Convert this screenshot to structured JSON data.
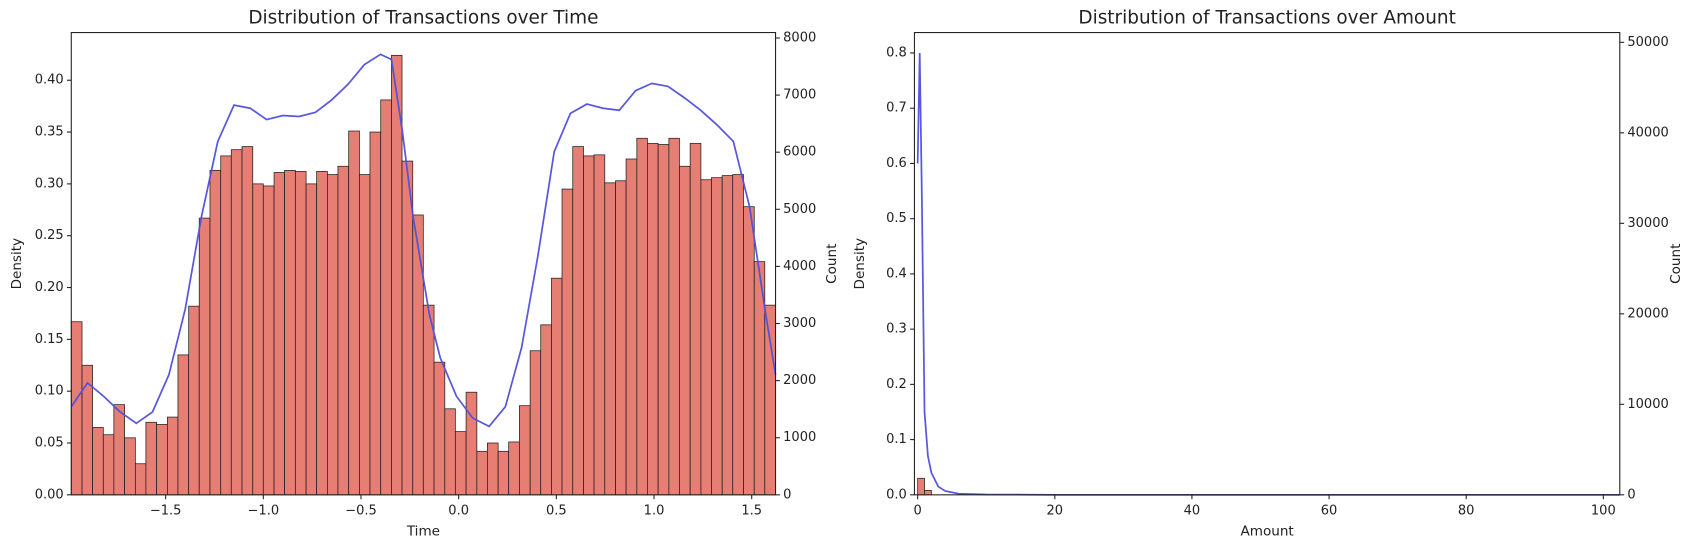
{
  "chart_data": [
    {
      "type": "histogram",
      "title": "Distribution of Transactions over Time",
      "x_label": "Time",
      "y_label": "Density",
      "y2_label": "Count",
      "bins": [
        -1.983,
        -1.928,
        -1.874,
        -1.819,
        -1.765,
        -1.71,
        -1.655,
        -1.601,
        -1.546,
        -1.491,
        -1.437,
        -1.382,
        -1.328,
        -1.273,
        -1.218,
        -1.164,
        -1.109,
        -1.054,
        -1.0,
        -0.945,
        -0.891,
        -0.836,
        -0.781,
        -0.727,
        -0.672,
        -0.618,
        -0.563,
        -0.508,
        -0.454,
        -0.399,
        -0.344,
        -0.29,
        -0.235,
        -0.181,
        -0.126,
        -0.071,
        -0.017,
        0.038,
        0.093,
        0.147,
        0.202,
        0.256,
        0.311,
        0.366,
        0.42,
        0.475,
        0.529,
        0.584,
        0.639,
        0.693,
        0.748,
        0.803,
        0.857,
        0.912,
        0.966,
        1.021,
        1.076,
        1.13,
        1.185,
        1.24,
        1.294,
        1.349,
        1.403,
        1.458,
        1.513,
        1.567,
        1.622
      ],
      "values": [
        0.167,
        0.125,
        0.065,
        0.058,
        0.087,
        0.055,
        0.03,
        0.07,
        0.068,
        0.075,
        0.135,
        0.182,
        0.267,
        0.313,
        0.327,
        0.333,
        0.336,
        0.3,
        0.298,
        0.311,
        0.313,
        0.312,
        0.3,
        0.312,
        0.309,
        0.317,
        0.351,
        0.309,
        0.35,
        0.381,
        0.424,
        0.322,
        0.27,
        0.183,
        0.128,
        0.083,
        0.061,
        0.099,
        0.042,
        0.05,
        0.042,
        0.051,
        0.086,
        0.139,
        0.164,
        0.209,
        0.295,
        0.336,
        0.327,
        0.328,
        0.301,
        0.303,
        0.324,
        0.344,
        0.339,
        0.338,
        0.344,
        0.317,
        0.339,
        0.304,
        0.306,
        0.308,
        0.309,
        0.278,
        0.225,
        0.183
      ],
      "color": "#e67e73",
      "kde": {
        "color": "#4f4fdc",
        "x": [
          -1.983,
          -1.9,
          -1.817,
          -1.733,
          -1.65,
          -1.567,
          -1.483,
          -1.4,
          -1.317,
          -1.233,
          -1.15,
          -1.067,
          -0.983,
          -0.9,
          -0.817,
          -0.733,
          -0.65,
          -0.567,
          -0.483,
          -0.4,
          -0.344,
          -0.289,
          -0.233,
          -0.15,
          -0.094,
          -0.011,
          0.072,
          0.156,
          0.239,
          0.322,
          0.406,
          0.489,
          0.572,
          0.656,
          0.739,
          0.822,
          0.906,
          0.989,
          1.072,
          1.156,
          1.239,
          1.322,
          1.406,
          1.489,
          1.572,
          1.622
        ],
        "values": [
          0.085,
          0.108,
          0.095,
          0.08,
          0.069,
          0.08,
          0.116,
          0.179,
          0.268,
          0.341,
          0.376,
          0.373,
          0.362,
          0.366,
          0.365,
          0.369,
          0.381,
          0.396,
          0.415,
          0.425,
          0.42,
          0.352,
          0.268,
          0.174,
          0.132,
          0.095,
          0.074,
          0.066,
          0.085,
          0.142,
          0.231,
          0.331,
          0.368,
          0.377,
          0.373,
          0.371,
          0.39,
          0.397,
          0.394,
          0.383,
          0.371,
          0.357,
          0.341,
          0.278,
          0.174,
          0.116
        ]
      },
      "xlim": [
        -1.983,
        1.622
      ],
      "xticks": [
        {
          "value": -1.5,
          "label": "−1.5"
        },
        {
          "value": -1.0,
          "label": "−1.0"
        },
        {
          "value": -0.5,
          "label": "−0.5"
        },
        {
          "value": 0,
          "label": "0.0"
        },
        {
          "value": 0.5,
          "label": "0.5"
        },
        {
          "value": 1.0,
          "label": "1.0"
        },
        {
          "value": 1.5,
          "label": "1.5"
        }
      ],
      "ylim": [
        0,
        0.446
      ],
      "yticks": [
        {
          "value": 0,
          "label": "0.00"
        },
        {
          "value": 0.05,
          "label": "0.05"
        },
        {
          "value": 0.1,
          "label": "0.10"
        },
        {
          "value": 0.15,
          "label": "0.15"
        },
        {
          "value": 0.2,
          "label": "0.20"
        },
        {
          "value": 0.25,
          "label": "0.25"
        },
        {
          "value": 0.3,
          "label": "0.30"
        },
        {
          "value": 0.35,
          "label": "0.35"
        },
        {
          "value": 0.4,
          "label": "0.40"
        }
      ],
      "y2lim": [
        0,
        8095
      ],
      "y2ticks": [
        0,
        1000,
        2000,
        3000,
        4000,
        5000,
        6000,
        7000,
        8000
      ]
    },
    {
      "type": "histogram",
      "title": "Distribution of Transactions over Amount",
      "x_label": "Amount",
      "y_label": "Density",
      "y2_label": "Count",
      "bins": [
        0,
        1,
        2
      ],
      "values": [
        0.03,
        0.008
      ],
      "color": "#e67e73",
      "kde": {
        "color": "#4f4fdc",
        "x": [
          0,
          0.3,
          0.6,
          1,
          1.5,
          2,
          3,
          4,
          6,
          10,
          20,
          50,
          102.4
        ],
        "values": [
          0.6,
          0.8,
          0.55,
          0.15,
          0.07,
          0.04,
          0.015,
          0.007,
          0.002,
          0.0005,
          0,
          0,
          0
        ]
      },
      "xlim": [
        -0.47,
        102.4
      ],
      "xticks": [
        0,
        20,
        40,
        60,
        80,
        100
      ],
      "ylim": [
        0,
        0.837
      ],
      "yticks": [
        {
          "value": 0,
          "label": "0.0"
        },
        {
          "value": 0.1,
          "label": "0.1"
        },
        {
          "value": 0.2,
          "label": "0.2"
        },
        {
          "value": 0.3,
          "label": "0.3"
        },
        {
          "value": 0.4,
          "label": "0.4"
        },
        {
          "value": 0.5,
          "label": "0.5"
        },
        {
          "value": 0.6,
          "label": "0.6"
        },
        {
          "value": 0.7,
          "label": "0.7"
        },
        {
          "value": 0.8,
          "label": "0.8"
        }
      ],
      "y2lim": [
        0,
        51080
      ],
      "y2ticks": [
        0,
        10000,
        20000,
        30000,
        40000,
        50000
      ]
    }
  ]
}
